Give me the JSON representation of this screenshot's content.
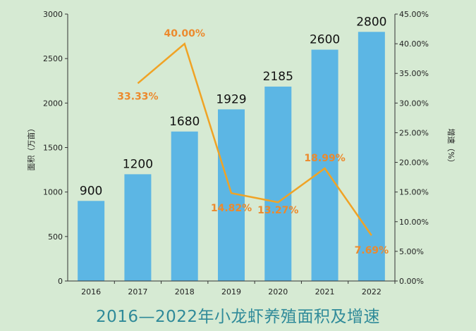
{
  "chart_data": {
    "type": "bar",
    "title": "2016—2022年小龙虾养殖面积及增速",
    "categories": [
      "2016",
      "2017",
      "2018",
      "2019",
      "2020",
      "2021",
      "2022"
    ],
    "series": [
      {
        "name": "面积（万亩）",
        "type": "bar",
        "axis": "left",
        "values": [
          900,
          1200,
          1680,
          1929,
          2185,
          2600,
          2800
        ],
        "labels": [
          "900",
          "1200",
          "1680",
          "1929",
          "2185",
          "2600",
          "2800"
        ],
        "color": "#5cb6e4"
      },
      {
        "name": "增速（%）",
        "type": "line",
        "axis": "right",
        "values": [
          null,
          33.33,
          40.0,
          14.82,
          13.27,
          18.99,
          7.69
        ],
        "labels": [
          "",
          "33.33%",
          "40.00%",
          "14.82%",
          "13.27%",
          "18.99%",
          "7.69%"
        ],
        "color": "#f0a325",
        "label_color": "#ec8a2d"
      }
    ],
    "ylabel": "面积（万亩）",
    "ylim": [
      0,
      3000
    ],
    "yticks": [
      "0",
      "500",
      "1000",
      "1500",
      "2000",
      "2500",
      "3000"
    ],
    "y2label": "增速（%）",
    "y2lim": [
      0,
      45
    ],
    "y2ticks": [
      "0.00%",
      "5.00%",
      "10.00%",
      "15.00%",
      "20.00%",
      "25.00%",
      "30.00%",
      "35.00%",
      "40.00%",
      "45.00%"
    ],
    "grid": false,
    "legend": "none"
  }
}
